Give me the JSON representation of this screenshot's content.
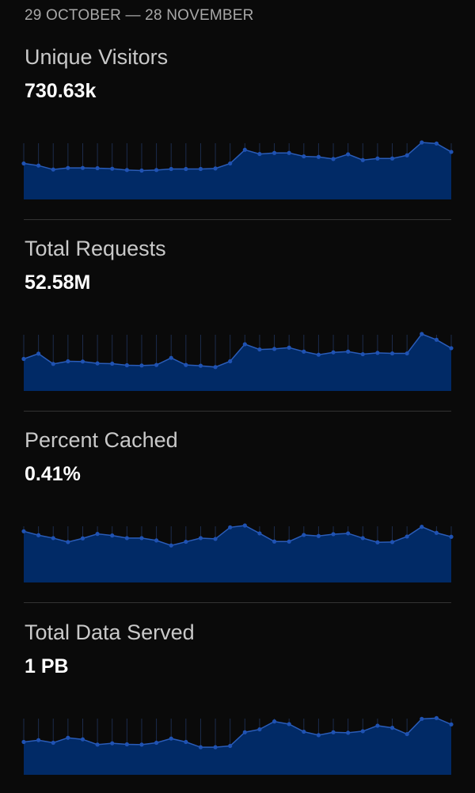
{
  "header": {
    "date_range": "29 OCTOBER — 28 NOVEMBER"
  },
  "colors": {
    "background": "#0a0a0a",
    "area_fill": "#012a66",
    "line": "#2a5cb8",
    "dot": "#1f52b3",
    "needle": "#1c2c4c",
    "divider": "#333333"
  },
  "metrics": [
    {
      "title": "Unique Visitors",
      "value": "730.63k"
    },
    {
      "title": "Total Requests",
      "value": "52.58M"
    },
    {
      "title": "Percent Cached",
      "value": "0.41%"
    },
    {
      "title": "Total Data Served",
      "value": "1 PB"
    }
  ],
  "chart_data": [
    {
      "type": "area",
      "ylim": [
        0,
        220
      ],
      "values": [
        137,
        129,
        114,
        120,
        120,
        119,
        117,
        112,
        110,
        112,
        116,
        116,
        116,
        118,
        137,
        189,
        173,
        177,
        177,
        164,
        162,
        154,
        172,
        150,
        156,
        156,
        168,
        217,
        213,
        181
      ]
    },
    {
      "type": "area",
      "ylim": [
        0,
        220
      ],
      "values": [
        122,
        142,
        103,
        113,
        112,
        105,
        104,
        98,
        97,
        99,
        126,
        99,
        96,
        91,
        113,
        178,
        158,
        160,
        165,
        150,
        138,
        147,
        150,
        140,
        145,
        143,
        143,
        217,
        195,
        163
      ]
    },
    {
      "type": "area",
      "ylim": [
        0,
        220
      ],
      "values": [
        195,
        180,
        169,
        154,
        168,
        185,
        179,
        169,
        169,
        160,
        141,
        155,
        169,
        166,
        210,
        217,
        187,
        156,
        156,
        181,
        177,
        184,
        187,
        169,
        153,
        154,
        175,
        212,
        189,
        174
      ]
    },
    {
      "type": "area",
      "ylim": [
        0,
        220
      ],
      "values": [
        125,
        132,
        122,
        141,
        135,
        115,
        120,
        116,
        115,
        122,
        138,
        125,
        105,
        105,
        110,
        162,
        173,
        203,
        193,
        164,
        151,
        162,
        160,
        166,
        187,
        179,
        155,
        213,
        216,
        192
      ]
    }
  ]
}
